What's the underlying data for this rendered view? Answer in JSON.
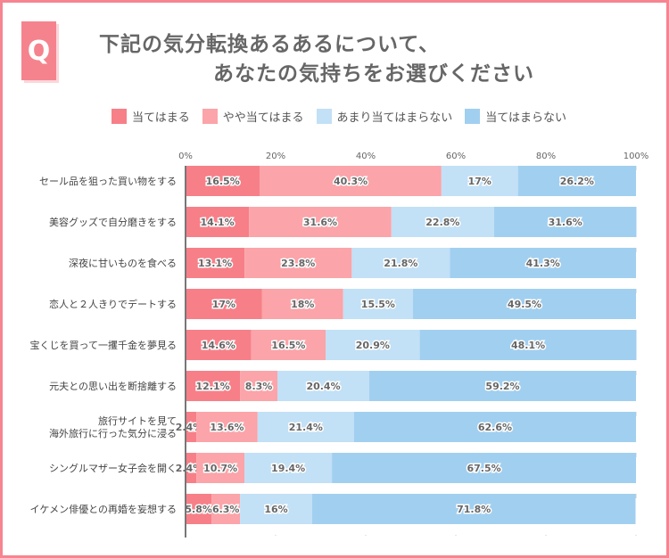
{
  "header": {
    "q": "Q",
    "line1": "下記の気分転換あるあるについて、",
    "line2": "あなたの気持ちをお選びください"
  },
  "chart_data": {
    "type": "bar",
    "stacked": true,
    "orientation": "horizontal",
    "xlim": [
      0,
      100
    ],
    "ticks": [
      "0%",
      "20%",
      "40%",
      "60%",
      "80%",
      "100%"
    ],
    "legend_position": "top",
    "series": [
      {
        "name": "当てはまる",
        "color": "#f77f88"
      },
      {
        "name": "やや当てはまる",
        "color": "#fba4a9"
      },
      {
        "name": "あまり当てはまらない",
        "color": "#c2e0f6"
      },
      {
        "name": "当てはまらない",
        "color": "#a1cff0"
      }
    ],
    "categories": [
      "セール品を狙った買い物をする",
      "美容グッズで自分磨きをする",
      "深夜に甘いものを食べる",
      "恋人と２人きりでデートする",
      "宝くじを買って一攫千金を夢見る",
      "元夫との思い出を断捨離する",
      "旅行サイトを見て\n海外旅行に行った気分に浸る",
      "シングルマザー女子会を開く",
      "イケメン俳優との再婚を妄想する"
    ],
    "values": [
      [
        16.5,
        40.3,
        17,
        26.2
      ],
      [
        14.1,
        31.6,
        22.8,
        31.6
      ],
      [
        13.1,
        23.8,
        21.8,
        41.3
      ],
      [
        17,
        18,
        15.5,
        49.5
      ],
      [
        14.6,
        16.5,
        20.9,
        48.1
      ],
      [
        12.1,
        8.3,
        20.4,
        59.2
      ],
      [
        2.4,
        13.6,
        21.4,
        62.6
      ],
      [
        2.4,
        10.7,
        19.4,
        67.5
      ],
      [
        5.8,
        6.3,
        16,
        71.8
      ]
    ]
  }
}
